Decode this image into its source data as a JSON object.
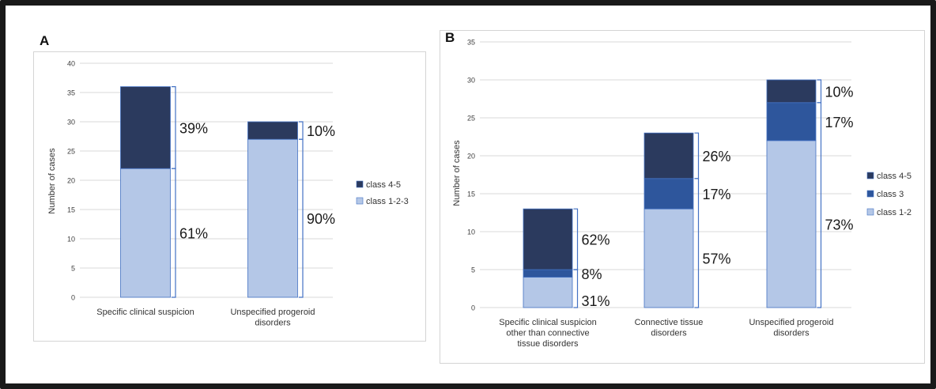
{
  "chart_data": [
    {
      "panel_label": "A",
      "type": "bar",
      "stacked": true,
      "ylabel": "Number of cases",
      "ylim": [
        0,
        40
      ],
      "yticks": [
        0,
        5,
        10,
        15,
        20,
        25,
        30,
        35,
        40
      ],
      "grid": true,
      "legend_position": "right",
      "categories": [
        "Specific clinical suspicion",
        "Unspecified progeroid disorders"
      ],
      "series": [
        {
          "name": "class 1-2-3",
          "color": "#b4c7e7",
          "values": [
            22,
            27
          ],
          "percent_labels": [
            "61%",
            "90%"
          ]
        },
        {
          "name": "class 4-5",
          "color": "#2b3a5e",
          "values": [
            14,
            3
          ],
          "percent_labels": [
            "39%",
            "10%"
          ]
        }
      ]
    },
    {
      "panel_label": "B",
      "type": "bar",
      "stacked": true,
      "ylabel": "Number of cases",
      "ylim": [
        0,
        35
      ],
      "yticks": [
        0,
        5,
        10,
        15,
        20,
        25,
        30,
        35
      ],
      "grid": true,
      "legend_position": "right",
      "categories": [
        "Specific clinical suspicion other than connective tissue disorders",
        "Connective tissue disorders",
        "Unspecified progeroid disorders"
      ],
      "series": [
        {
          "name": "class 1-2",
          "color": "#b4c7e7",
          "values": [
            4,
            13,
            22
          ],
          "percent_labels": [
            "31%",
            "57%",
            "73%"
          ]
        },
        {
          "name": "class 3",
          "color": "#2e569c",
          "values": [
            1,
            4,
            5
          ],
          "percent_labels": [
            "8%",
            "17%",
            "17%"
          ]
        },
        {
          "name": "class 4-5",
          "color": "#2b3a5e",
          "values": [
            8,
            6,
            3
          ],
          "percent_labels": [
            "62%",
            "26%",
            "10%"
          ]
        }
      ]
    }
  ]
}
